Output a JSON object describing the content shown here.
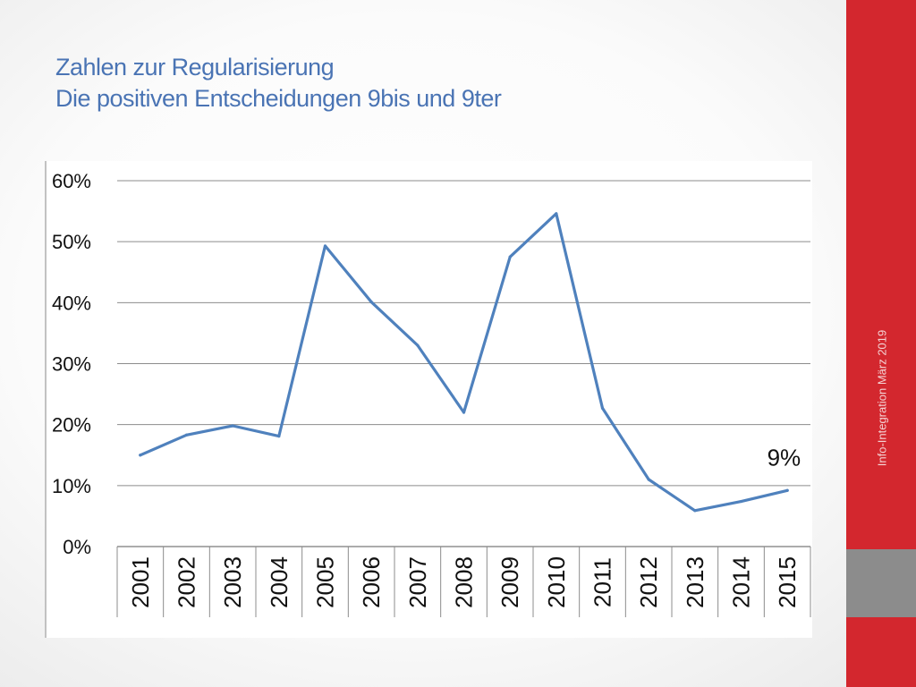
{
  "slide": {
    "title_line1": "Zahlen zur Regularisierung",
    "title_line2": "Die positiven Entscheidungen 9bis und 9ter",
    "footer": "Info-Integration März 2019"
  },
  "colors": {
    "title": "#4a74b4",
    "series": "#4f81bd",
    "band": "#d3272e",
    "band_block": "#8c8c8c"
  },
  "chart_data": {
    "type": "line",
    "categories": [
      "2001",
      "2002",
      "2003",
      "2004",
      "2005",
      "2006",
      "2007",
      "2008",
      "2009",
      "2010",
      "2011",
      "2012",
      "2013",
      "2014",
      "2015"
    ],
    "values": [
      15,
      18.3,
      19.8,
      18.1,
      49.3,
      40.1,
      33,
      22,
      47.5,
      54.6,
      22.7,
      11,
      5.9,
      7.4,
      9.2
    ],
    "yticks": [
      "0%",
      "10%",
      "20%",
      "30%",
      "40%",
      "50%",
      "60%"
    ],
    "ylim": [
      0,
      60
    ],
    "grid": true,
    "annotation": "9%"
  }
}
